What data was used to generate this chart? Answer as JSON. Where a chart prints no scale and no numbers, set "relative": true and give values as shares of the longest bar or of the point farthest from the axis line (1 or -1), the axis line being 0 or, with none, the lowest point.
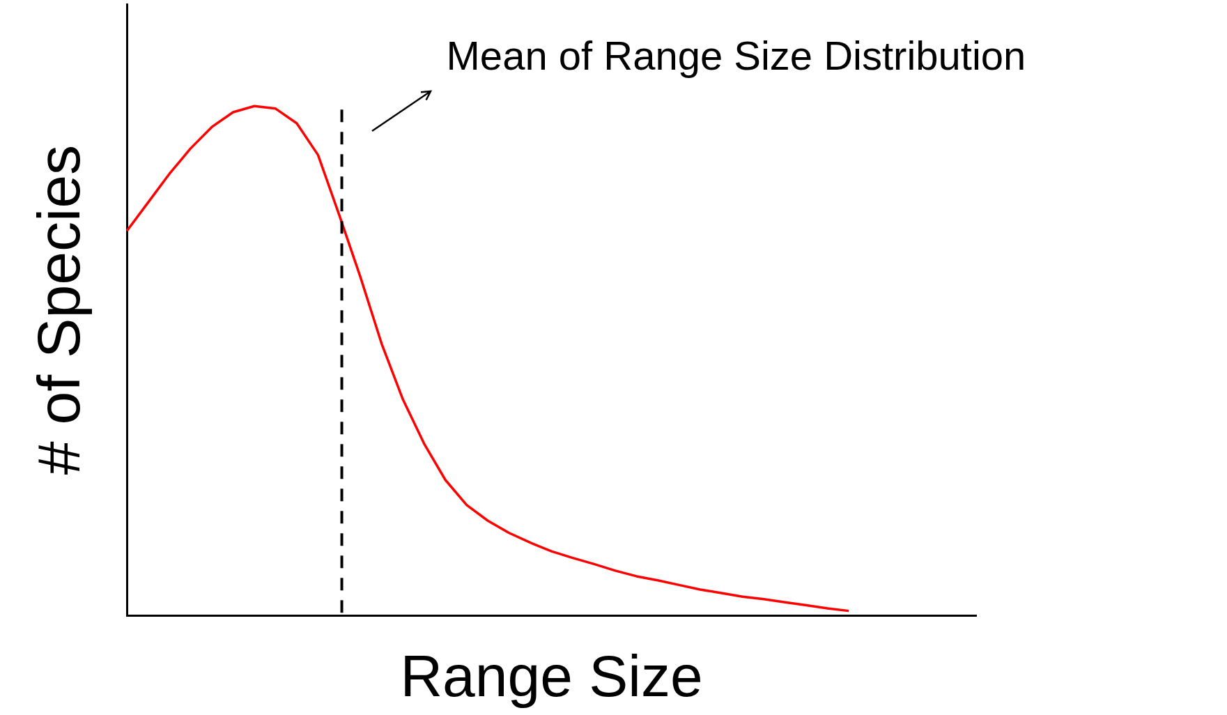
{
  "chart_data": {
    "type": "line",
    "xlabel": "Range Size",
    "ylabel": "# of Species",
    "relative": true,
    "marker": "none",
    "line_style": "solid",
    "categories": [
      null,
      null,
      null,
      null,
      null,
      null,
      null,
      null,
      null,
      null,
      null,
      null,
      null,
      null,
      null,
      null,
      null,
      null,
      null,
      null,
      null,
      null,
      null,
      null,
      null,
      null,
      null,
      null,
      null,
      null,
      null,
      null,
      null,
      null,
      null,
      null,
      null,
      null,
      null,
      null,
      null
    ],
    "values": [
      0.755,
      0.811,
      0.867,
      0.917,
      0.959,
      0.988,
      1,
      0.995,
      0.966,
      0.904,
      0.786,
      0.664,
      0.533,
      0.424,
      0.337,
      0.266,
      0.217,
      0.186,
      0.162,
      0.143,
      0.126,
      0.113,
      0.101,
      0.088,
      0.077,
      0.069,
      0.06,
      0.051,
      0.044,
      0.037,
      0.032,
      0.026,
      0.02,
      0.014,
      0.009,
      null,
      null,
      null,
      null,
      null,
      null
    ],
    "color": "#ff0000",
    "annotations": [
      "Mean of Range Size Distribution"
    ]
  }
}
